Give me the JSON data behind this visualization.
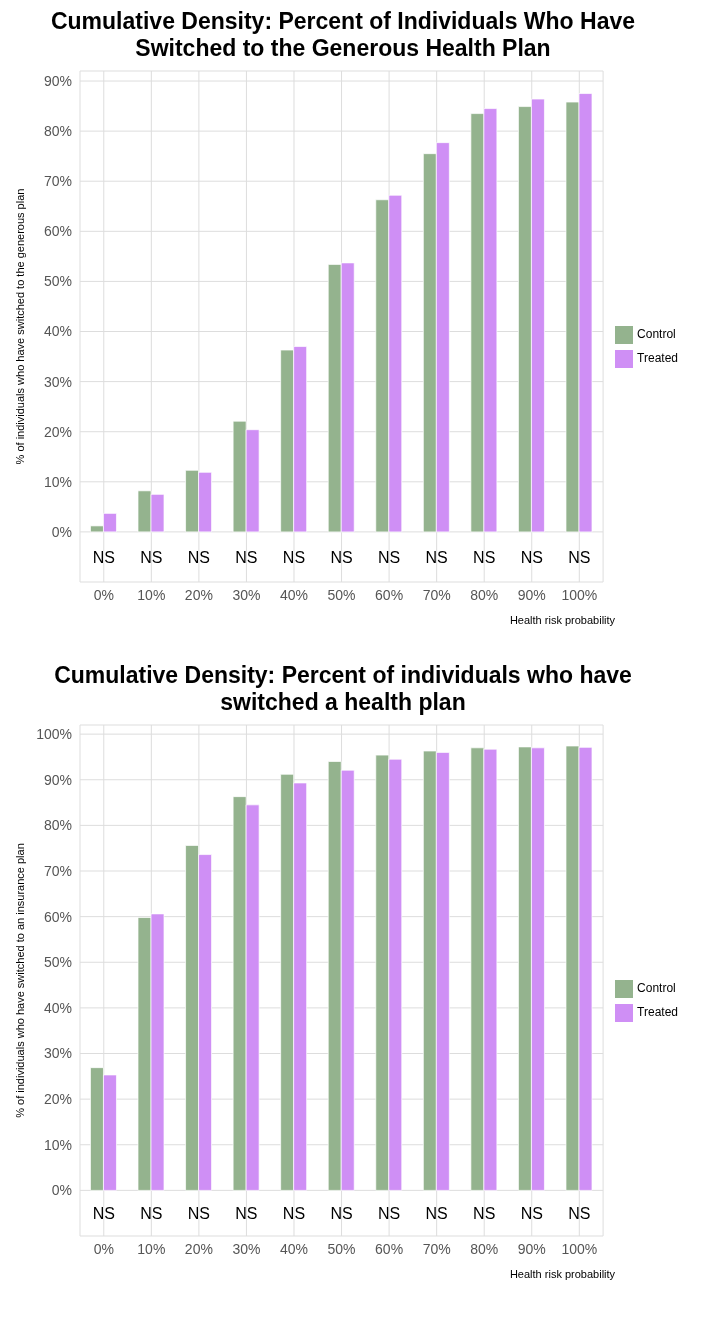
{
  "chart_data": [
    {
      "type": "bar",
      "title": "Cumulative Density: Percent of Individuals Who Have Switched to the Generous Health Plan",
      "xlabel": "Health risk probability",
      "ylabel": "% of individuals who have switched to the generous plan",
      "categories": [
        "0%",
        "10%",
        "20%",
        "30%",
        "40%",
        "50%",
        "60%",
        "70%",
        "80%",
        "90%",
        "100%"
      ],
      "series": [
        {
          "name": "Control",
          "color": "#94b38e",
          "values": [
            1.2,
            8.2,
            12.3,
            22.1,
            36.3,
            53.4,
            66.3,
            75.5,
            83.5,
            84.9,
            85.8
          ]
        },
        {
          "name": "Treated",
          "color": "#cf8ff5",
          "values": [
            3.7,
            7.5,
            11.9,
            20.4,
            37.0,
            53.7,
            67.2,
            77.7,
            84.5,
            86.4,
            87.5
          ]
        }
      ],
      "ylim": [
        -10,
        92
      ],
      "yticks": [
        {
          "value": 0,
          "label": "0%"
        },
        {
          "value": 10,
          "label": "10%"
        },
        {
          "value": 20,
          "label": "20%"
        },
        {
          "value": 30,
          "label": "30%"
        },
        {
          "value": 40,
          "label": "40%"
        },
        {
          "value": 50,
          "label": "50%"
        },
        {
          "value": 60,
          "label": "60%"
        },
        {
          "value": 70,
          "label": "70%"
        },
        {
          "value": 80,
          "label": "80%"
        },
        {
          "value": 90,
          "label": "90%"
        }
      ],
      "annotations": [
        "NS",
        "NS",
        "NS",
        "NS",
        "NS",
        "NS",
        "NS",
        "NS",
        "NS",
        "NS",
        "NS"
      ],
      "grid": true,
      "legend": "right"
    },
    {
      "type": "bar",
      "title": "Cumulative Density: Percent of individuals who have switched a health plan",
      "xlabel": "Health risk probability",
      "ylabel": "% of individuals who have switched to an insurance plan",
      "categories": [
        "0%",
        "10%",
        "20%",
        "30%",
        "40%",
        "50%",
        "60%",
        "70%",
        "80%",
        "90%",
        "100%"
      ],
      "series": [
        {
          "name": "Control",
          "color": "#94b38e",
          "values": [
            26.9,
            59.8,
            75.6,
            86.3,
            91.2,
            94.0,
            95.4,
            96.3,
            97.0,
            97.2,
            97.4
          ]
        },
        {
          "name": "Treated",
          "color": "#cf8ff5",
          "values": [
            25.3,
            60.6,
            73.6,
            84.5,
            89.3,
            92.1,
            94.5,
            96.0,
            96.7,
            97.0,
            97.1
          ]
        }
      ],
      "ylim": [
        -10,
        102
      ],
      "yticks": [
        {
          "value": 0,
          "label": "0%"
        },
        {
          "value": 10,
          "label": "10%"
        },
        {
          "value": 20,
          "label": "20%"
        },
        {
          "value": 30,
          "label": "30%"
        },
        {
          "value": 40,
          "label": "40%"
        },
        {
          "value": 50,
          "label": "50%"
        },
        {
          "value": 60,
          "label": "60%"
        },
        {
          "value": 70,
          "label": "70%"
        },
        {
          "value": 80,
          "label": "80%"
        },
        {
          "value": 90,
          "label": "90%"
        },
        {
          "value": 100,
          "label": "100%"
        }
      ],
      "annotations": [
        "NS",
        "NS",
        "NS",
        "NS",
        "NS",
        "NS",
        "NS",
        "NS",
        "NS",
        "NS",
        "NS"
      ],
      "grid": true,
      "legend": "right"
    }
  ]
}
